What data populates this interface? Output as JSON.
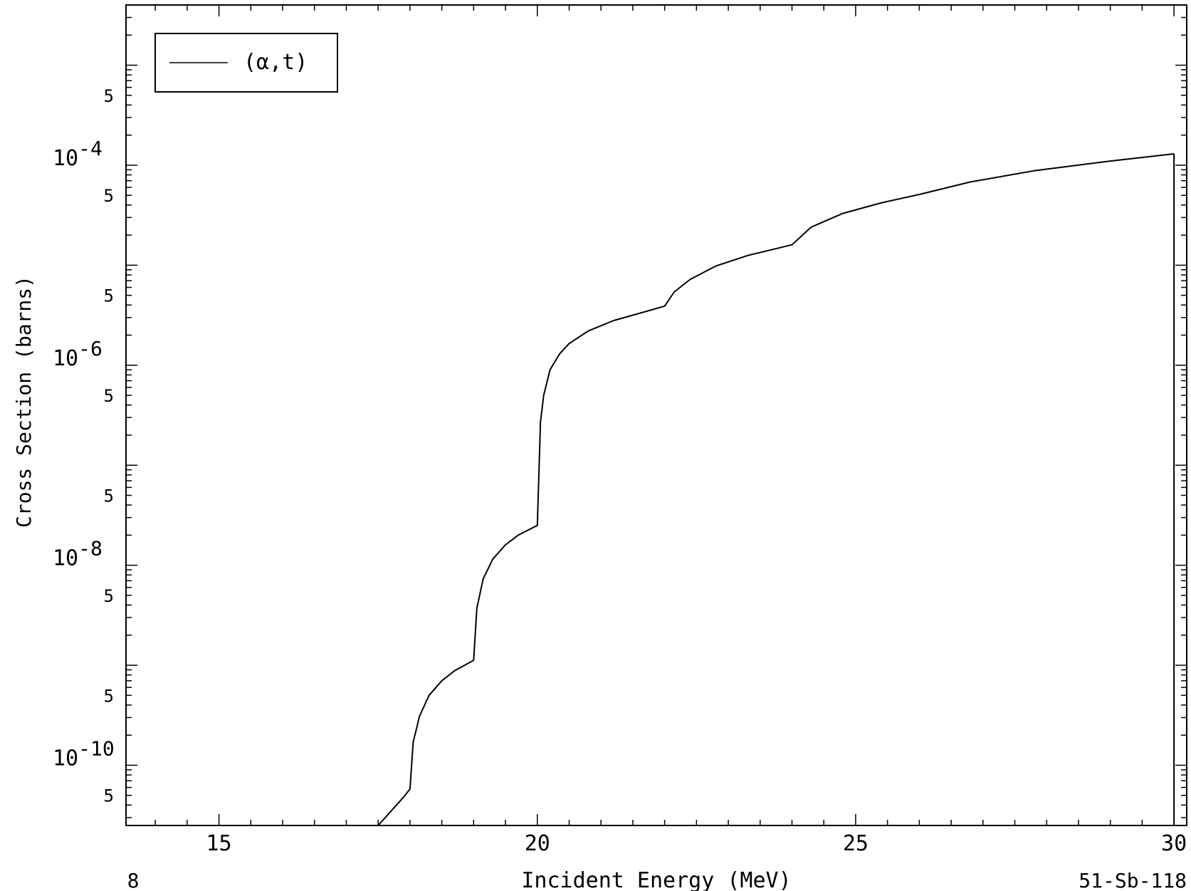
{
  "chart_data": {
    "type": "line",
    "title": "",
    "xlabel": "Incident Energy (MeV)",
    "ylabel": "Cross Section (barns)",
    "xscale": "linear",
    "yscale": "log",
    "xlim": [
      13.54,
      30.2
    ],
    "ylim": [
      2.5e-11,
      0.004
    ],
    "x_ticks": [
      15,
      20,
      25,
      30
    ],
    "x_tick_labels": [
      "15",
      "20",
      "25",
      "30"
    ],
    "y_decade_labels": [
      {
        "value": 0.0001,
        "mantissa": "10",
        "exponent": "-4"
      },
      {
        "value": 1e-06,
        "mantissa": "10",
        "exponent": "-6"
      },
      {
        "value": 1e-08,
        "mantissa": "10",
        "exponent": "-8"
      },
      {
        "value": 1e-10,
        "mantissa": "10",
        "exponent": "-10"
      }
    ],
    "y_half_label": "5",
    "grid": false,
    "legend_position": "top-left",
    "footer_left": "8",
    "footer_right": "51-Sb-118",
    "series": [
      {
        "name": "(α,t)",
        "color": "#000000",
        "x": [
          17.5,
          17.9,
          18.0,
          18.05,
          18.15,
          18.3,
          18.5,
          18.7,
          19.0,
          19.05,
          19.15,
          19.3,
          19.5,
          19.7,
          20.0,
          20.05,
          20.1,
          20.2,
          20.35,
          20.5,
          20.8,
          21.2,
          21.6,
          22.0,
          22.15,
          22.4,
          22.8,
          23.3,
          24.0,
          24.3,
          24.8,
          25.4,
          26.0,
          26.8,
          27.8,
          29.0,
          30.0
        ],
        "y": [
          2.5e-11,
          4.8e-11,
          5.8e-11,
          1.7e-10,
          3.1e-10,
          5e-10,
          7e-10,
          8.8e-10,
          1.12e-09,
          3.7e-09,
          7.3e-09,
          1.15e-08,
          1.6e-08,
          2e-08,
          2.5e-08,
          2.7e-07,
          5e-07,
          9e-07,
          1.3e-06,
          1.65e-06,
          2.2e-06,
          2.8e-06,
          3.3e-06,
          3.9e-06,
          5.4e-06,
          7.2e-06,
          9.8e-06,
          1.25e-05,
          1.6e-05,
          2.4e-05,
          3.3e-05,
          4.2e-05,
          5.1e-05,
          6.8e-05,
          8.8e-05,
          0.00011,
          0.00013
        ]
      }
    ]
  }
}
